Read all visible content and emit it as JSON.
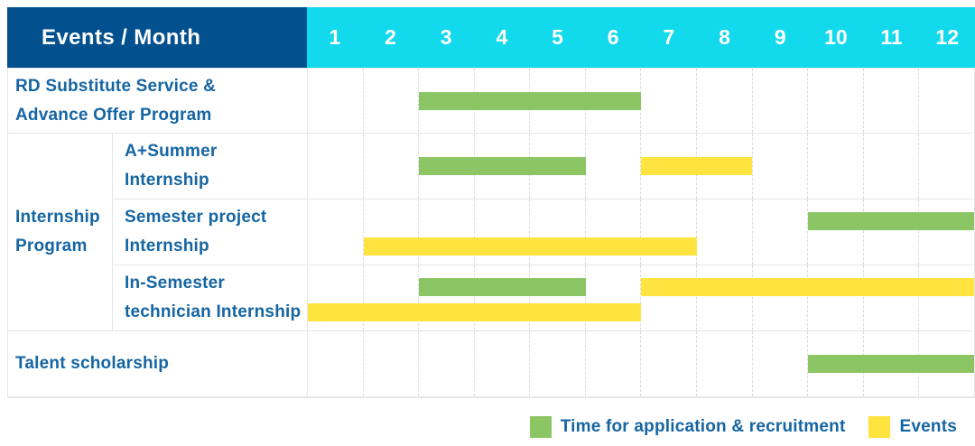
{
  "header": {
    "title": "Events / Month",
    "months": [
      "1",
      "2",
      "3",
      "4",
      "5",
      "6",
      "7",
      "8",
      "9",
      "10",
      "11",
      "12"
    ]
  },
  "group": {
    "label": "Internship Program",
    "label_lines": [
      "Internship",
      "Program"
    ]
  },
  "rows": [
    {
      "id": "rd-substitute-service",
      "label": "RD Substitute Service & Advance Offer Program",
      "label_lines": [
        "RD Substitute Service &",
        "Advance Offer Program"
      ],
      "bars": [
        {
          "type": "application",
          "lane": "single",
          "start": 3,
          "end": 6
        }
      ]
    },
    {
      "id": "a-plus-summer-internship",
      "label": "A+Summer Internship",
      "label_lines": [
        "A+Summer",
        "Internship"
      ],
      "bars": [
        {
          "type": "application",
          "lane": "single",
          "start": 3,
          "end": 5
        },
        {
          "type": "event",
          "lane": "single",
          "start": 7,
          "end": 8
        }
      ]
    },
    {
      "id": "semester-project-internship",
      "label": "Semester project Internship",
      "label_lines": [
        "Semester project",
        "Internship"
      ],
      "bars": [
        {
          "type": "application",
          "lane": "upper",
          "start": 10,
          "end": 12
        },
        {
          "type": "event",
          "lane": "lower",
          "start": 2,
          "end": 7
        }
      ]
    },
    {
      "id": "in-semester-technician-internship",
      "label": "In-Semester technician Internship",
      "label_lines": [
        "In-Semester",
        "technician Internship"
      ],
      "bars": [
        {
          "type": "application",
          "lane": "upper",
          "start": 3,
          "end": 5
        },
        {
          "type": "event",
          "lane": "upper",
          "start": 7,
          "end": 12
        },
        {
          "type": "event",
          "lane": "lower",
          "start": 1,
          "end": 6
        }
      ]
    },
    {
      "id": "talent-scholarship",
      "label": "Talent scholarship",
      "label_lines": [
        "Talent scholarship"
      ],
      "bars": [
        {
          "type": "application",
          "lane": "single",
          "start": 10,
          "end": 12
        }
      ]
    }
  ],
  "legend": {
    "items": [
      {
        "type": "application",
        "label": "Time for application & recruitment"
      },
      {
        "type": "event",
        "label": "Events"
      }
    ]
  },
  "colors": {
    "header_navy": "#03508e",
    "header_cyan": "#12d9ec",
    "application_green": "#8cc564",
    "event_yellow": "#ffe33e",
    "label_blue": "#1565a3",
    "grid_border": "#e4e7ea",
    "grid_dashed": "#d9dde2"
  },
  "chart_data": {
    "type": "bar",
    "subtype": "gantt-schedule",
    "title": "Events / Month",
    "x_axis": {
      "label": "Month",
      "ticks": [
        1,
        2,
        3,
        4,
        5,
        6,
        7,
        8,
        9,
        10,
        11,
        12
      ],
      "range": [
        1,
        12
      ]
    },
    "legend_entries": [
      "Time for application & recruitment",
      "Events"
    ],
    "legend_position": "bottom-right",
    "grid": true,
    "rows": [
      {
        "label": "RD Substitute Service & Advance Offer Program",
        "bars": [
          {
            "series": "Time for application & recruitment",
            "start_month": 3,
            "end_month": 6
          }
        ]
      },
      {
        "label": "Internship Program / A+Summer Internship",
        "bars": [
          {
            "series": "Time for application & recruitment",
            "start_month": 3,
            "end_month": 5
          },
          {
            "series": "Events",
            "start_month": 7,
            "end_month": 8
          }
        ]
      },
      {
        "label": "Internship Program / Semester project Internship",
        "bars": [
          {
            "series": "Time for application & recruitment",
            "start_month": 10,
            "end_month": 12
          },
          {
            "series": "Events",
            "start_month": 2,
            "end_month": 7
          }
        ]
      },
      {
        "label": "Internship Program / In-Semester technician Internship",
        "bars": [
          {
            "series": "Time for application & recruitment",
            "start_month": 3,
            "end_month": 5
          },
          {
            "series": "Events",
            "start_month": 7,
            "end_month": 12
          },
          {
            "series": "Events",
            "start_month": 1,
            "end_month": 6
          }
        ]
      },
      {
        "label": "Talent scholarship",
        "bars": [
          {
            "series": "Time for application & recruitment",
            "start_month": 10,
            "end_month": 12
          }
        ]
      }
    ]
  }
}
